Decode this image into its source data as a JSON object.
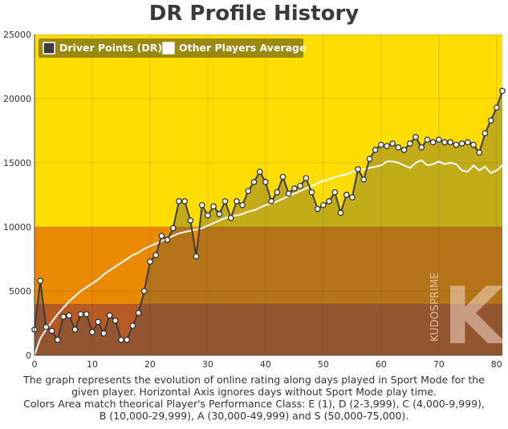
{
  "chart_data": {
    "type": "line",
    "title": "DR Profile History",
    "xlim": [
      0,
      81
    ],
    "ylim": [
      0,
      25000
    ],
    "x_ticks": [
      "0",
      "10",
      "20",
      "30",
      "40",
      "50",
      "60",
      "70",
      "80"
    ],
    "y_ticks": [
      "0",
      "5000",
      "10000",
      "15000",
      "20000",
      "25000"
    ],
    "bands": [
      {
        "from": 0,
        "to": 4000,
        "color": "#b85a24"
      },
      {
        "from": 4000,
        "to": 10000,
        "color": "#ea8a00"
      },
      {
        "from": 10000,
        "to": 25000,
        "color": "#ffdd00"
      }
    ],
    "legend": [
      {
        "label": "Driver Points (DR)",
        "color": "#3b3b3b"
      },
      {
        "label": "Other Players Average",
        "color": "#ffffff"
      }
    ],
    "series": [
      {
        "name": "Driver Points (DR)",
        "color": "#3b3b3b",
        "x": [
          0,
          1,
          2,
          3,
          4,
          5,
          6,
          7,
          8,
          9,
          10,
          11,
          12,
          13,
          14,
          15,
          16,
          17,
          18,
          19,
          20,
          21,
          22,
          23,
          24,
          25,
          26,
          27,
          28,
          29,
          30,
          31,
          32,
          33,
          34,
          35,
          36,
          37,
          38,
          39,
          40,
          41,
          42,
          43,
          44,
          45,
          46,
          47,
          48,
          49,
          50,
          51,
          52,
          53,
          54,
          55,
          56,
          57,
          58,
          59,
          60,
          61,
          62,
          63,
          64,
          65,
          66,
          67,
          68,
          69,
          70,
          71,
          72,
          73,
          74,
          75,
          76,
          77,
          78,
          79,
          80,
          81
        ],
        "values": [
          2000,
          5800,
          2200,
          1900,
          1200,
          3000,
          3100,
          2000,
          3200,
          3200,
          1800,
          2600,
          1700,
          3100,
          2700,
          1200,
          1200,
          2300,
          3300,
          5000,
          7300,
          7800,
          9300,
          9000,
          9900,
          12000,
          12000,
          10500,
          7700,
          11700,
          10900,
          11600,
          11000,
          12000,
          10700,
          12000,
          11700,
          12800,
          13500,
          14300,
          13500,
          12000,
          12700,
          13900,
          12600,
          13000,
          13200,
          13800,
          12700,
          11400,
          11700,
          12000,
          12700,
          11100,
          12500,
          12300,
          14500,
          13700,
          15300,
          16000,
          16400,
          16300,
          16500,
          16200,
          16000,
          16500,
          17000,
          16200,
          16800,
          16600,
          16800,
          16600,
          16600,
          16400,
          16500,
          16600,
          16400,
          15800,
          17300,
          18300,
          19300,
          20600
        ]
      },
      {
        "name": "Other Players Average",
        "color": "#ffffff",
        "x": [
          0,
          1,
          2,
          3,
          4,
          5,
          6,
          7,
          8,
          9,
          10,
          11,
          12,
          13,
          14,
          15,
          16,
          17,
          18,
          19,
          20,
          21,
          22,
          23,
          24,
          25,
          26,
          27,
          28,
          29,
          30,
          31,
          32,
          33,
          34,
          35,
          36,
          37,
          38,
          39,
          40,
          41,
          42,
          43,
          44,
          45,
          46,
          47,
          48,
          49,
          50,
          51,
          52,
          53,
          54,
          55,
          56,
          57,
          58,
          59,
          60,
          61,
          62,
          63,
          64,
          65,
          66,
          67,
          68,
          69,
          70,
          71,
          72,
          73,
          74,
          75,
          76,
          77,
          78,
          79,
          80,
          81
        ],
        "values": [
          0,
          1300,
          2000,
          2600,
          3200,
          3700,
          4200,
          4600,
          5000,
          5300,
          5600,
          5900,
          6300,
          6600,
          6900,
          7200,
          7500,
          7800,
          8000,
          8300,
          8500,
          8700,
          8900,
          9100,
          9300,
          9500,
          9600,
          9700,
          9800,
          9900,
          10100,
          10300,
          10500,
          10700,
          10800,
          10900,
          11000,
          11200,
          11300,
          11500,
          11700,
          11800,
          12000,
          12200,
          12400,
          12600,
          12800,
          13000,
          13200,
          13400,
          13600,
          13700,
          13900,
          14000,
          14100,
          14300,
          14400,
          14500,
          14600,
          14700,
          14800,
          15100,
          15100,
          15000,
          14800,
          14600,
          15000,
          15200,
          14800,
          14900,
          15100,
          14900,
          15000,
          14900,
          14400,
          14300,
          14800,
          14400,
          14700,
          14200,
          14400,
          14800
        ]
      }
    ]
  },
  "caption": [
    "The graph represents the evolution of online rating along days played in Sport Mode for the",
    "given player. Horizontal Axis ignores days without Sport Mode play time.",
    "Colors Area match theorical Player's Performance Class: E (1), D (2-3,999), C (4,000-9,999),",
    "B (10,000-29,999), A (30,000-49,999) and S (50,000-75,000)."
  ],
  "watermark": {
    "letter": "K",
    "text": "KUDOSPRIME"
  }
}
